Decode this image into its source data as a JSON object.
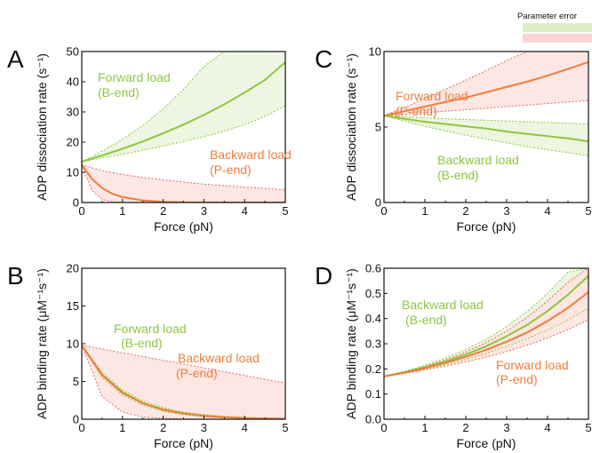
{
  "legend": {
    "title": "Parameter error",
    "swatches": [
      {
        "color": "#dcefc8"
      },
      {
        "color": "#fbd6d2"
      }
    ]
  },
  "colors": {
    "green": "#8dc63f",
    "green_fill": "#eaf5dc",
    "orange": "#ee7d3b",
    "red_fill": "#fde3df",
    "red_dot": "#e8665a"
  },
  "chart_data": [
    {
      "panel": "A",
      "type": "line",
      "ylabel": "ADP dissociation rate (s⁻¹)",
      "xlabel": "Force (pN)",
      "xlim": [
        0,
        5
      ],
      "ylim": [
        0,
        50
      ],
      "xticks": [
        0,
        1,
        2,
        3,
        4,
        5
      ],
      "yticks": [
        0,
        10,
        20,
        30,
        40,
        50
      ],
      "annotations": [
        {
          "text": "Forward load",
          "color": "green"
        },
        {
          "text": "(B-end)",
          "color": "green"
        },
        {
          "text": "Backward load",
          "color": "orange"
        },
        {
          "text": "(P-end)",
          "color": "orange"
        }
      ],
      "series": [
        {
          "color": "green",
          "x": [
            0,
            0.5,
            1,
            1.5,
            2,
            2.5,
            3,
            3.5,
            4,
            4.5,
            5
          ],
          "y": [
            13.5,
            15.6,
            17.8,
            20.2,
            22.9,
            25.8,
            29.0,
            32.5,
            36.4,
            40.6,
            46.5
          ],
          "band_low": [
            13.5,
            14.8,
            16.0,
            17.3,
            18.7,
            20.2,
            21.8,
            23.6,
            25.8,
            28.5,
            32.0
          ],
          "band_high": [
            13.5,
            17.0,
            21.0,
            25.5,
            31.0,
            37.5,
            45.0,
            53.0,
            62.0,
            72.0,
            82.0
          ],
          "band": "green"
        },
        {
          "color": "orange",
          "x": [
            0,
            0.25,
            0.5,
            0.75,
            1,
            1.5,
            2,
            2.5,
            3,
            4,
            5
          ],
          "y": [
            12.5,
            7.8,
            4.8,
            2.9,
            1.8,
            0.7,
            0.25,
            0.1,
            0.04,
            0.01,
            0.0
          ],
          "band_low": [
            12.5,
            4.0,
            1.0,
            0.3,
            0.1,
            0,
            0,
            0,
            0,
            0,
            0
          ],
          "band_high": [
            12.5,
            11.5,
            10.6,
            9.9,
            9.3,
            8.3,
            7.5,
            6.8,
            6.1,
            5.1,
            4.2
          ],
          "band": "red"
        }
      ]
    },
    {
      "panel": "B",
      "type": "line",
      "ylabel": "ADP binding rate (μM⁻¹s⁻¹)",
      "xlabel": "Force (pN)",
      "xlim": [
        0,
        5
      ],
      "ylim": [
        0,
        20
      ],
      "xticks": [
        0,
        1,
        2,
        3,
        4,
        5
      ],
      "yticks": [
        0,
        5,
        10,
        15,
        20
      ],
      "annotations": [
        {
          "text": "Forward load",
          "color": "green"
        },
        {
          "text": "(B-end)",
          "color": "green"
        },
        {
          "text": "Backward load",
          "color": "orange"
        },
        {
          "text": "(P-end)",
          "color": "orange"
        }
      ],
      "series": [
        {
          "color": "green",
          "x": [
            0,
            0.5,
            1,
            1.5,
            2,
            2.5,
            3,
            3.5,
            4,
            4.5,
            5
          ],
          "y": [
            9.8,
            5.9,
            3.6,
            2.15,
            1.3,
            0.78,
            0.47,
            0.28,
            0.17,
            0.1,
            0.06
          ],
          "band_low": [
            9.8,
            5.5,
            3.2,
            1.85,
            1.05,
            0.6,
            0.34,
            0.2,
            0.11,
            0.06,
            0.03
          ],
          "band_high": [
            9.8,
            6.2,
            3.9,
            2.45,
            1.55,
            0.98,
            0.62,
            0.39,
            0.24,
            0.15,
            0.1
          ],
          "band": "green"
        },
        {
          "color": "orange",
          "x": [
            0,
            0.5,
            1,
            1.5,
            2,
            2.5,
            3,
            3.5,
            4,
            4.5,
            5
          ],
          "y": [
            9.8,
            5.85,
            3.5,
            2.1,
            1.25,
            0.75,
            0.45,
            0.27,
            0.16,
            0.1,
            0.06
          ],
          "band_low": [
            9.8,
            3.0,
            0.95,
            0.3,
            0.1,
            0.03,
            0.01,
            0,
            0,
            0,
            0
          ],
          "band_high": [
            9.8,
            9.3,
            8.8,
            8.3,
            7.8,
            7.3,
            6.8,
            6.3,
            5.8,
            5.3,
            4.8
          ],
          "band": "red"
        }
      ]
    },
    {
      "panel": "C",
      "type": "line",
      "ylabel": "ADP dissociation rate (s⁻¹)",
      "xlabel": "Force (pN)",
      "xlim": [
        0,
        5
      ],
      "ylim": [
        0,
        10
      ],
      "xticks": [
        0,
        1,
        2,
        3,
        4,
        5
      ],
      "yticks": [
        0,
        5,
        10
      ],
      "annotations": [
        {
          "text": "Forward load",
          "color": "orange"
        },
        {
          "text": "(P-end)",
          "color": "orange"
        },
        {
          "text": "Backward load",
          "color": "green"
        },
        {
          "text": "(B-end)",
          "color": "green"
        }
      ],
      "series": [
        {
          "color": "orange",
          "x": [
            0,
            0.5,
            1,
            1.5,
            2,
            2.5,
            3,
            3.5,
            4,
            4.5,
            5
          ],
          "y": [
            5.75,
            6.05,
            6.35,
            6.65,
            6.95,
            7.3,
            7.65,
            8.0,
            8.4,
            8.85,
            9.3
          ],
          "band_low": [
            5.75,
            5.85,
            5.95,
            6.05,
            6.15,
            6.25,
            6.35,
            6.45,
            6.55,
            6.65,
            6.75
          ],
          "band_high": [
            5.75,
            6.3,
            6.9,
            7.5,
            8.1,
            8.75,
            9.4,
            10.1,
            10.8,
            11.5,
            12.3
          ],
          "band": "red"
        },
        {
          "color": "green",
          "x": [
            0,
            0.5,
            1,
            1.5,
            2,
            2.5,
            3,
            3.5,
            4,
            4.5,
            5
          ],
          "y": [
            5.75,
            5.55,
            5.35,
            5.2,
            5.05,
            4.9,
            4.7,
            4.55,
            4.4,
            4.25,
            4.05
          ],
          "band_low": [
            5.75,
            5.4,
            5.05,
            4.75,
            4.45,
            4.2,
            3.95,
            3.7,
            3.5,
            3.3,
            3.1
          ],
          "band_high": [
            5.75,
            5.7,
            5.6,
            5.55,
            5.5,
            5.45,
            5.4,
            5.35,
            5.3,
            5.25,
            5.2
          ],
          "band": "green"
        }
      ]
    },
    {
      "panel": "D",
      "type": "line",
      "ylabel": "ADP binding rate (μM⁻¹s⁻¹)",
      "xlabel": "Force (pN)",
      "xlim": [
        0,
        5
      ],
      "ylim": [
        0,
        0.6
      ],
      "xticks": [
        0,
        1,
        2,
        3,
        4,
        5
      ],
      "yticks": [
        0.0,
        0.1,
        0.2,
        0.3,
        0.4,
        0.5,
        0.6
      ],
      "annotations": [
        {
          "text": "Backward load",
          "color": "green"
        },
        {
          "text": "(B-end)",
          "color": "green"
        },
        {
          "text": "Forward load",
          "color": "orange"
        },
        {
          "text": "(P-end)",
          "color": "orange"
        }
      ],
      "series": [
        {
          "color": "green",
          "x": [
            0,
            0.5,
            1,
            1.5,
            2,
            2.5,
            3,
            3.5,
            4,
            4.5,
            5
          ],
          "y": [
            0.17,
            0.187,
            0.207,
            0.23,
            0.257,
            0.29,
            0.33,
            0.375,
            0.43,
            0.495,
            0.57
          ],
          "band_low": [
            0.17,
            0.184,
            0.2,
            0.218,
            0.238,
            0.262,
            0.29,
            0.32,
            0.355,
            0.395,
            0.44
          ],
          "band_high": [
            0.17,
            0.19,
            0.215,
            0.243,
            0.277,
            0.318,
            0.368,
            0.428,
            0.5,
            0.585,
            0.68
          ],
          "band": "green"
        },
        {
          "color": "orange",
          "x": [
            0,
            0.5,
            1,
            1.5,
            2,
            2.5,
            3,
            3.5,
            4,
            4.5,
            5
          ],
          "y": [
            0.17,
            0.185,
            0.203,
            0.224,
            0.248,
            0.276,
            0.308,
            0.345,
            0.39,
            0.443,
            0.505
          ],
          "band_low": [
            0.17,
            0.182,
            0.196,
            0.211,
            0.228,
            0.247,
            0.269,
            0.294,
            0.323,
            0.357,
            0.395
          ],
          "band_high": [
            0.17,
            0.188,
            0.21,
            0.236,
            0.267,
            0.305,
            0.35,
            0.405,
            0.47,
            0.545,
            0.63
          ],
          "band": "red"
        }
      ]
    }
  ],
  "panel_labels": [
    "A",
    "B",
    "C",
    "D"
  ]
}
